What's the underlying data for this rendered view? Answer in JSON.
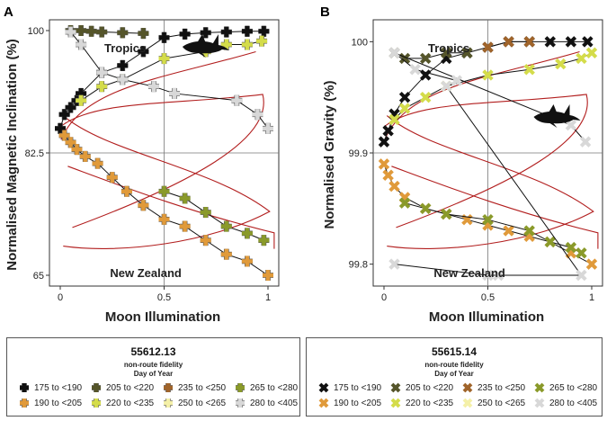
{
  "panels": [
    {
      "letter": "A",
      "ylabel": "Normalised Magnetic Inclination (%)",
      "xlabel": "Moon Illumination",
      "yticks": [
        "65",
        "82.5",
        "100"
      ],
      "xticks": [
        "0",
        "0.5",
        "1"
      ],
      "top_label": "Tropics",
      "bottom_label": "New Zealand",
      "marker": "plus",
      "legend": {
        "id": "55612.13",
        "line1": "non-route fidelity",
        "line2": "Day of Year",
        "entries": [
          {
            "label": "175 to <190",
            "color": "#111111"
          },
          {
            "label": "205 to <220",
            "color": "#55552a"
          },
          {
            "label": "235 to <250",
            "color": "#a0642a"
          },
          {
            "label": "265 to <280",
            "color": "#8a9a2a"
          },
          {
            "label": "190 to <205",
            "color": "#e09a3a"
          },
          {
            "label": "220 to <235",
            "color": "#d4dc4a"
          },
          {
            "label": "250 to <265",
            "color": "#f4f0a8"
          },
          {
            "label": "280 to <405",
            "color": "#d8d8d8"
          }
        ]
      }
    },
    {
      "letter": "B",
      "ylabel": "Normalised Gravity (%)",
      "xlabel": "Moon Illumination",
      "yticks": [
        "99.8",
        "99.9",
        "100"
      ],
      "xticks": [
        "0",
        "0.5",
        "1"
      ],
      "top_label": "Tropics",
      "bottom_label": "New Zealand",
      "marker": "x",
      "legend": {
        "id": "55615.14",
        "line1": "non-route fidelity",
        "line2": "Day of Year",
        "entries": [
          {
            "label": "175 to <190",
            "color": "#111111"
          },
          {
            "label": "205 to <220",
            "color": "#55552a"
          },
          {
            "label": "235 to <250",
            "color": "#a0642a"
          },
          {
            "label": "265 to <280",
            "color": "#8a9a2a"
          },
          {
            "label": "190 to <205",
            "color": "#e09a3a"
          },
          {
            "label": "220 to <235",
            "color": "#d4dc4a"
          },
          {
            "label": "250 to <265",
            "color": "#f4f0a8"
          },
          {
            "label": "280 to <405",
            "color": "#d8d8d8"
          }
        ]
      }
    }
  ],
  "chart_data": [
    {
      "type": "scatter",
      "title": "A",
      "xlabel": "Moon Illumination",
      "ylabel": "Normalised Magnetic Inclination (%)",
      "xlim": [
        0,
        1
      ],
      "ylim": [
        100,
        65
      ],
      "series": [
        {
          "name": "175 to <190",
          "color": "#111111",
          "x": [
            0,
            0.02,
            0.05,
            0.08,
            0.1,
            0.2,
            0.3,
            0.4,
            0.5,
            0.6,
            0.7,
            0.8,
            0.9,
            0.98
          ],
          "y": [
            86,
            88,
            89,
            90,
            91,
            94,
            95,
            97,
            99,
            99.5,
            99.7,
            99.8,
            99.9,
            99.9
          ]
        },
        {
          "name": "190 to <205",
          "color": "#e09a3a",
          "x": [
            0.02,
            0.05,
            0.08,
            0.12,
            0.18,
            0.25,
            0.32,
            0.4,
            0.5,
            0.6,
            0.7,
            0.8,
            0.9,
            1.0
          ],
          "y": [
            85,
            84,
            83,
            82,
            81,
            79,
            77,
            75,
            73,
            72,
            70,
            68,
            67,
            65
          ]
        },
        {
          "name": "205 to <220",
          "color": "#55552a",
          "x": [
            0.05,
            0.1,
            0.15,
            0.2,
            0.3,
            0.4
          ],
          "y": [
            100,
            100,
            99.9,
            99.8,
            99.7,
            99.6
          ]
        },
        {
          "name": "220 to <235",
          "color": "#d4dc4a",
          "x": [
            0.1,
            0.2,
            0.3,
            0.5,
            0.7,
            0.8,
            0.9,
            0.97
          ],
          "y": [
            90,
            92,
            93,
            96,
            97,
            98,
            98,
            98.5
          ]
        },
        {
          "name": "265 to <280",
          "color": "#8a9a2a",
          "x": [
            0.5,
            0.6,
            0.7,
            0.8,
            0.9,
            0.98
          ],
          "y": [
            77,
            76,
            74,
            72,
            71,
            70
          ]
        },
        {
          "name": "280 to <405",
          "color": "#d8d8d8",
          "x": [
            0.05,
            0.1,
            0.2,
            0.3,
            0.45,
            0.55,
            0.85,
            0.95,
            1.0
          ],
          "y": [
            99.8,
            98,
            94,
            93,
            92,
            91,
            90,
            88,
            86
          ]
        }
      ]
    },
    {
      "type": "scatter",
      "title": "B",
      "xlabel": "Moon Illumination",
      "ylabel": "Normalised Gravity (%)",
      "xlim": [
        0,
        1
      ],
      "ylim": [
        100.01,
        99.79
      ],
      "series": [
        {
          "name": "175 to <190",
          "color": "#111111",
          "x": [
            0,
            0.02,
            0.05,
            0.1,
            0.2,
            0.3,
            0.4,
            0.5,
            0.6,
            0.7,
            0.8,
            0.9,
            0.98
          ],
          "y": [
            99.91,
            99.92,
            99.935,
            99.95,
            99.97,
            99.985,
            99.99,
            99.995,
            100.0,
            100.0,
            100.0,
            100.0,
            100.0
          ]
        },
        {
          "name": "190 to <205",
          "color": "#e09a3a",
          "x": [
            0,
            0.02,
            0.05,
            0.1,
            0.2,
            0.3,
            0.4,
            0.5,
            0.6,
            0.7,
            0.8,
            0.9,
            1.0
          ],
          "y": [
            99.89,
            99.88,
            99.87,
            99.86,
            99.85,
            99.845,
            99.84,
            99.835,
            99.83,
            99.825,
            99.82,
            99.81,
            99.8
          ]
        },
        {
          "name": "205 to <220",
          "color": "#55552a",
          "x": [
            0.05,
            0.1,
            0.2,
            0.3,
            0.4
          ],
          "y": [
            99.99,
            99.985,
            99.985,
            99.99,
            99.99
          ]
        },
        {
          "name": "235 to <250",
          "color": "#a0642a",
          "x": [
            0.5,
            0.6,
            0.7
          ],
          "y": [
            99.995,
            100.0,
            100.0
          ]
        },
        {
          "name": "265 to <280",
          "color": "#8a9a2a",
          "x": [
            0.1,
            0.2,
            0.3,
            0.5,
            0.7,
            0.8,
            0.9,
            0.95
          ],
          "y": [
            99.855,
            99.85,
            99.845,
            99.84,
            99.83,
            99.82,
            99.815,
            99.81
          ]
        },
        {
          "name": "220 to <235",
          "color": "#d4dc4a",
          "x": [
            0.05,
            0.1,
            0.2,
            0.3,
            0.5,
            0.7,
            0.85,
            0.95,
            1.0
          ],
          "y": [
            99.93,
            99.94,
            99.95,
            99.96,
            99.97,
            99.975,
            99.98,
            99.985,
            99.99
          ]
        },
        {
          "name": "280 to <405",
          "color": "#d8d8d8",
          "x": [
            0.05,
            0.5,
            0.55,
            0.95,
            0.3,
            0.35,
            0.15,
            0.05,
            0.9,
            0.97
          ],
          "y": [
            99.8,
            99.79,
            99.79,
            99.79,
            99.96,
            99.965,
            99.975,
            99.99,
            99.925,
            99.91
          ]
        }
      ]
    }
  ]
}
